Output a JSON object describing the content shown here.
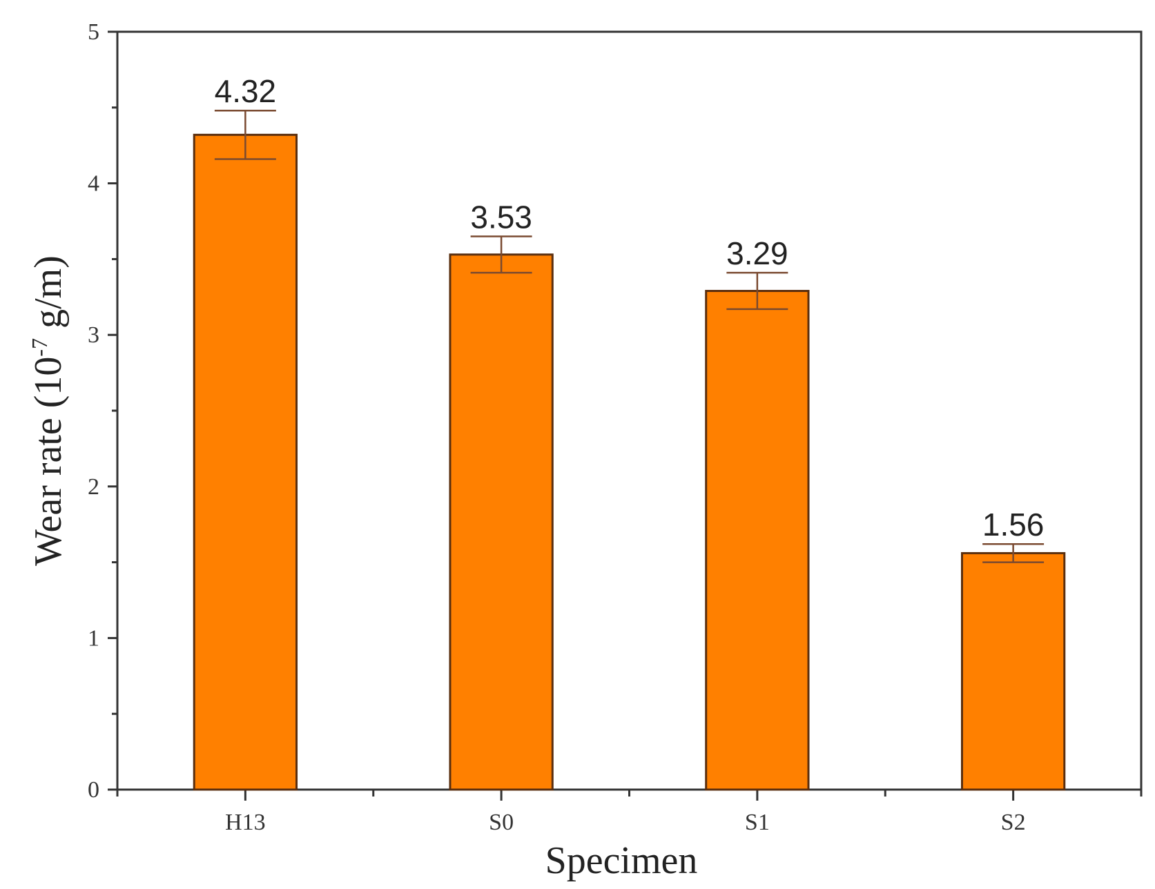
{
  "chart_data": {
    "type": "bar",
    "categories": [
      "H13",
      "S0",
      "S1",
      "S2"
    ],
    "values": [
      4.32,
      3.53,
      3.29,
      1.56
    ],
    "errors": [
      0.16,
      0.12,
      0.12,
      0.06
    ],
    "data_labels": [
      "4.32",
      "3.53",
      "3.29",
      "1.56"
    ],
    "title": "",
    "xlabel": "Specimen",
    "ylabel_prefix": "Wear rate (10",
    "ylabel_exponent": "-7",
    "ylabel_suffix": " g/m)",
    "ylim": [
      0,
      5
    ],
    "yticks": [
      "0",
      "1",
      "2",
      "3",
      "4",
      "5"
    ],
    "grid": false,
    "legend": "none",
    "colors": {
      "bar_fill": "#ff8000",
      "bar_edge": "#5a2e0e",
      "error_bar": "#7a4a30",
      "axis": "#333333"
    }
  }
}
